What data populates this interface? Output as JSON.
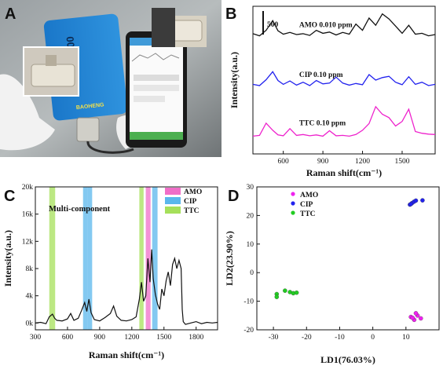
{
  "figure": {
    "panels": {
      "A": {
        "letter": "A",
        "device_label": "RMS1000",
        "device_brand": "BAOHENG"
      },
      "B": {
        "letter": "B"
      },
      "C": {
        "letter": "C"
      },
      "D": {
        "letter": "D"
      }
    }
  },
  "colors": {
    "black": "#111111",
    "blue": "#2222ee",
    "magenta": "#ee22cc",
    "amo_band": "#f06ec8",
    "cip_band": "#5ab7ec",
    "ttc_band": "#a6e05a"
  },
  "chart_data": [
    {
      "panel": "B",
      "type": "line",
      "xlabel": "Raman shift(cm⁻¹)",
      "ylabel": "Intensity(a.u.)",
      "xlim": [
        370,
        1750
      ],
      "xticks": [
        600,
        900,
        1200,
        1500
      ],
      "scalebar_label": "500",
      "grid": false,
      "series": [
        {
          "name": "AMO 0.010 ppm",
          "color": "#111111",
          "offset": 2600,
          "x": [
            370,
            420,
            470,
            520,
            560,
            600,
            650,
            700,
            750,
            800,
            850,
            900,
            950,
            1000,
            1050,
            1100,
            1150,
            1200,
            1250,
            1300,
            1350,
            1400,
            1450,
            1500,
            1550,
            1600,
            1650,
            1700,
            1750
          ],
          "y": [
            250,
            200,
            330,
            560,
            320,
            240,
            280,
            230,
            250,
            210,
            330,
            260,
            290,
            220,
            280,
            240,
            480,
            330,
            620,
            450,
            720,
            600,
            430,
            260,
            450,
            240,
            260,
            200,
            230
          ]
        },
        {
          "name": "CIP 0.10 ppm",
          "color": "#2222ee",
          "offset": 1500,
          "x": [
            370,
            420,
            470,
            520,
            560,
            600,
            650,
            700,
            750,
            800,
            850,
            900,
            950,
            1000,
            1050,
            1100,
            1150,
            1200,
            1250,
            1300,
            1350,
            1400,
            1450,
            1500,
            1550,
            1600,
            1650,
            1700,
            1750
          ],
          "y": [
            150,
            120,
            260,
            450,
            240,
            150,
            230,
            130,
            200,
            120,
            240,
            160,
            180,
            320,
            180,
            130,
            170,
            140,
            380,
            250,
            310,
            340,
            200,
            140,
            330,
            150,
            200,
            120,
            150
          ]
        },
        {
          "name": "TTC 0.10 ppm",
          "color": "#ee22cc",
          "offset": 300,
          "x": [
            370,
            420,
            470,
            520,
            560,
            600,
            650,
            700,
            750,
            800,
            850,
            900,
            950,
            1000,
            1050,
            1100,
            1150,
            1200,
            1250,
            1300,
            1350,
            1400,
            1450,
            1500,
            1550,
            1600,
            1650,
            1700,
            1750
          ],
          "y": [
            120,
            140,
            430,
            260,
            150,
            130,
            300,
            140,
            160,
            130,
            150,
            120,
            250,
            130,
            140,
            120,
            160,
            260,
            420,
            820,
            640,
            560,
            360,
            470,
            760,
            230,
            190,
            170,
            160
          ]
        }
      ]
    },
    {
      "panel": "C",
      "type": "line",
      "title": "Multi-component",
      "xlabel": "Raman shift(cm⁻¹)",
      "ylabel": "Intensity(a.u.)",
      "xlim": [
        300,
        2000
      ],
      "ylim": [
        -1000,
        20000
      ],
      "xticks": [
        300,
        600,
        900,
        1200,
        1500,
        1800
      ],
      "yticks": [
        0,
        4000,
        8000,
        12000,
        16000,
        20000
      ],
      "ytick_labels": [
        "0k",
        "4k",
        "8k",
        "12k",
        "16k",
        "20k"
      ],
      "legend": [
        {
          "name": "AMO",
          "color": "#f06ec8"
        },
        {
          "name": "CIP",
          "color": "#5ab7ec"
        },
        {
          "name": "TTC",
          "color": "#a6e05a"
        }
      ],
      "legend_position": "top-right",
      "bands": [
        {
          "name": "TTC",
          "from": 430,
          "to": 485,
          "color": "#a6e05a"
        },
        {
          "name": "CIP",
          "from": 745,
          "to": 790,
          "color": "#5ab7ec"
        },
        {
          "name": "CIP",
          "from": 790,
          "to": 830,
          "color": "#5ab7ec"
        },
        {
          "name": "TTC",
          "from": 1270,
          "to": 1310,
          "color": "#a6e05a"
        },
        {
          "name": "AMO",
          "from": 1330,
          "to": 1375,
          "color": "#f06ec8"
        },
        {
          "name": "CIP",
          "from": 1390,
          "to": 1440,
          "color": "#5ab7ec"
        }
      ],
      "series": [
        {
          "name": "Multi-component",
          "color": "#111111",
          "x": [
            300,
            350,
            400,
            430,
            460,
            480,
            500,
            550,
            600,
            630,
            660,
            700,
            730,
            760,
            780,
            800,
            820,
            850,
            900,
            950,
            1000,
            1030,
            1060,
            1100,
            1150,
            1200,
            1240,
            1270,
            1290,
            1310,
            1330,
            1350,
            1370,
            1385,
            1400,
            1420,
            1440,
            1460,
            1480,
            1500,
            1520,
            1540,
            1560,
            1580,
            1600,
            1620,
            1640,
            1660,
            1670,
            1680,
            1700,
            1750,
            1800,
            1850,
            1900,
            1950,
            2000
          ],
          "y": [
            0,
            100,
            -100,
            900,
            1300,
            700,
            400,
            300,
            600,
            1400,
            400,
            700,
            1800,
            3000,
            1700,
            3500,
            1500,
            500,
            300,
            800,
            1400,
            2500,
            1000,
            400,
            300,
            500,
            900,
            3500,
            6000,
            3200,
            4000,
            9500,
            6000,
            10800,
            6500,
            4200,
            2800,
            2000,
            5000,
            4000,
            6200,
            7500,
            5500,
            8600,
            9500,
            8000,
            9200,
            8000,
            2000,
            200,
            -200,
            0,
            200,
            -100,
            100,
            0,
            100
          ]
        }
      ]
    },
    {
      "panel": "D",
      "type": "scatter",
      "xlabel": "LD1(76.03%)",
      "ylabel": "LD2(23.90%)",
      "xlim": [
        -35,
        20
      ],
      "ylim": [
        -20,
        30
      ],
      "xticks": [
        -30,
        -20,
        -10,
        0,
        10
      ],
      "yticks": [
        -20,
        -10,
        0,
        10,
        20,
        30
      ],
      "legend_position": "top-left",
      "series": [
        {
          "name": "AMO",
          "color": "#ee22ee",
          "x": [
            11.5,
            12.5,
            13.5,
            14.5,
            13.0,
            12.0
          ],
          "y": [
            -15.5,
            -16.5,
            -15.0,
            -16.0,
            -14.2,
            -15.8
          ]
        },
        {
          "name": "CIP",
          "color": "#2222ee",
          "x": [
            11.2,
            11.8,
            12.4,
            13.0,
            15.0,
            11.5
          ],
          "y": [
            23.8,
            24.3,
            24.8,
            25.2,
            25.3,
            24.0
          ]
        },
        {
          "name": "TTC",
          "color": "#22cc22",
          "x": [
            -29.0,
            -29.0,
            -26.5,
            -25.0,
            -24.0,
            -23.0
          ],
          "y": [
            -7.5,
            -8.5,
            -6.3,
            -6.8,
            -7.2,
            -7.0
          ]
        }
      ]
    }
  ]
}
